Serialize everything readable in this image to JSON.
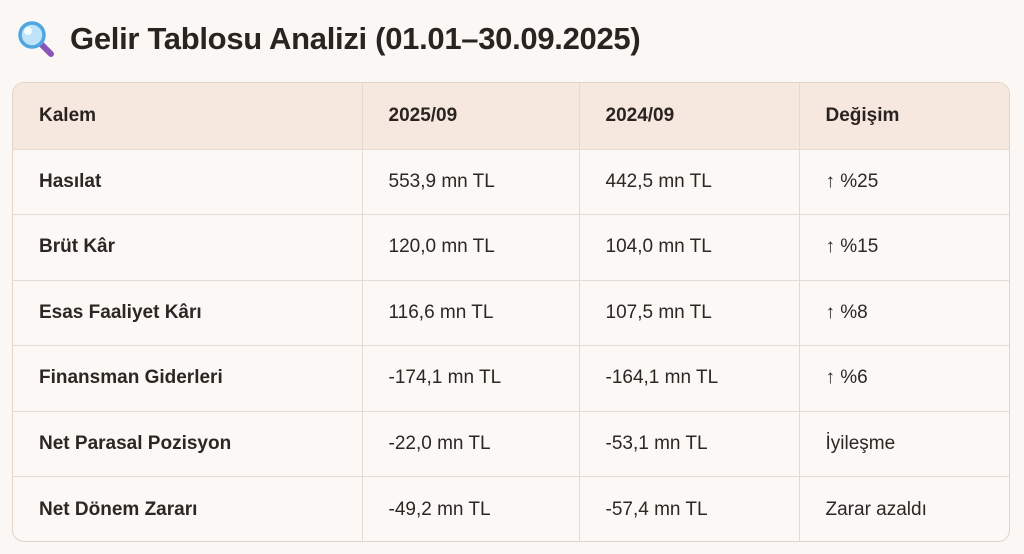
{
  "page": {
    "title": "Gelir Tablosu Analizi (01.01–30.09.2025)",
    "title_icon": "magnifying-glass-icon"
  },
  "table": {
    "headers": [
      "Kalem",
      "2025/09",
      "2024/09",
      "Değişim"
    ],
    "rows": [
      [
        "Hasılat",
        "553,9 mn TL",
        "442,5 mn TL",
        "↑ %25"
      ],
      [
        "Brüt Kâr",
        "120,0 mn TL",
        "104,0 mn TL",
        "↑ %15"
      ],
      [
        "Esas Faaliyet Kârı",
        "116,6 mn TL",
        "107,5 mn TL",
        "↑ %8"
      ],
      [
        "Finansman Giderleri",
        "-174,1 mn TL",
        "-164,1 mn TL",
        "↑ %6"
      ],
      [
        "Net Parasal Pozisyon",
        "-22,0 mn TL",
        "-53,1 mn TL",
        "İyileşme"
      ],
      [
        "Net Dönem Zararı",
        "-49,2 mn TL",
        "-57,4 mn TL",
        "Zarar azaldı"
      ]
    ]
  },
  "colors": {
    "header_bg": "#f6e7df",
    "border": "#e3d4c8",
    "icon_lens": "#4fa6e0",
    "icon_handle": "#8a55b8"
  }
}
